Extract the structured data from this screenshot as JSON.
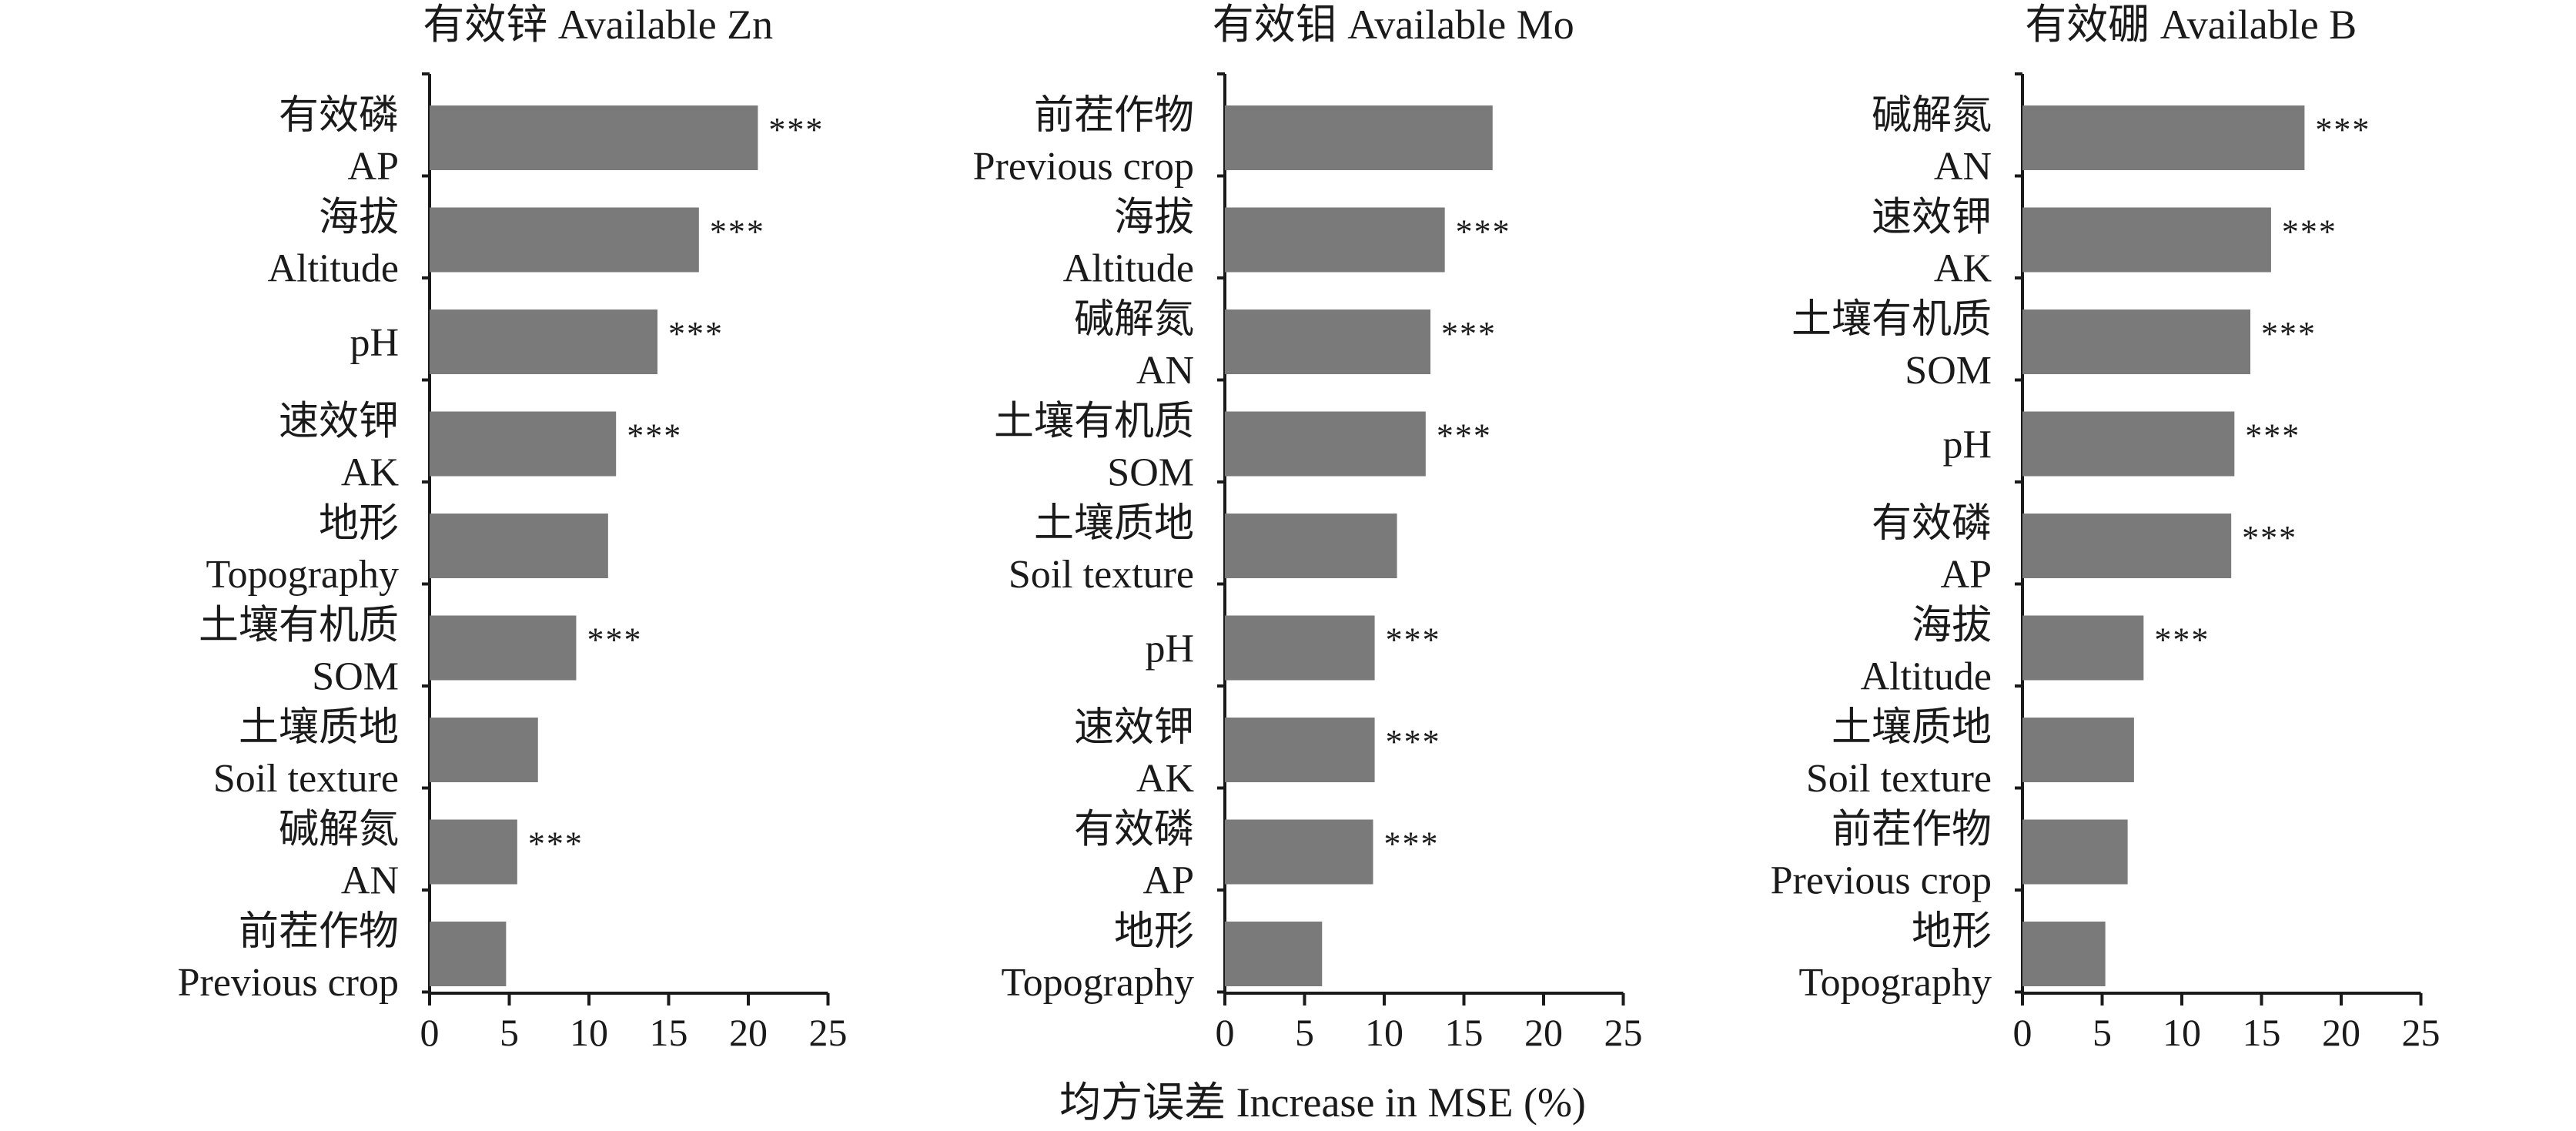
{
  "x_axis_title": "均方误差 Increase in MSE (%)",
  "colors": {
    "bar": "#7a7a7a",
    "axis": "#1a1a1a",
    "text": "#1a1a1a"
  },
  "chart_data": [
    {
      "type": "bar",
      "orientation": "horizontal",
      "title": "有效锌 Available Zn",
      "xlim": [
        0,
        25
      ],
      "xticks": [
        0,
        5,
        10,
        15,
        20,
        25
      ],
      "categories": [
        {
          "zh": "有效磷",
          "en": "AP",
          "value": 20.6,
          "sig": "***"
        },
        {
          "zh": "海拔",
          "en": "Altitude",
          "value": 16.9,
          "sig": "***"
        },
        {
          "zh": "",
          "en": "pH",
          "value": 14.3,
          "sig": "***"
        },
        {
          "zh": "速效钾",
          "en": "AK",
          "value": 11.7,
          "sig": "***"
        },
        {
          "zh": "地形",
          "en": "Topography",
          "value": 11.2,
          "sig": ""
        },
        {
          "zh": "土壤有机质",
          "en": "SOM",
          "value": 9.2,
          "sig": "***"
        },
        {
          "zh": "土壤质地",
          "en": "Soil texture",
          "value": 6.8,
          "sig": ""
        },
        {
          "zh": "碱解氮",
          "en": "AN",
          "value": 5.5,
          "sig": "***"
        },
        {
          "zh": "前茬作物",
          "en": "Previous crop",
          "value": 4.8,
          "sig": ""
        }
      ]
    },
    {
      "type": "bar",
      "orientation": "horizontal",
      "title": "有效钼 Available Mo",
      "xlim": [
        0,
        25
      ],
      "xticks": [
        0,
        5,
        10,
        15,
        20,
        25
      ],
      "categories": [
        {
          "zh": "前茬作物",
          "en": "Previous crop",
          "value": 16.8,
          "sig": ""
        },
        {
          "zh": "海拔",
          "en": "Altitude",
          "value": 13.8,
          "sig": "***"
        },
        {
          "zh": "碱解氮",
          "en": "AN",
          "value": 12.9,
          "sig": "***"
        },
        {
          "zh": "土壤有机质",
          "en": "SOM",
          "value": 12.6,
          "sig": "***"
        },
        {
          "zh": "土壤质地",
          "en": "Soil texture",
          "value": 10.8,
          "sig": ""
        },
        {
          "zh": "",
          "en": "pH",
          "value": 9.4,
          "sig": "***"
        },
        {
          "zh": "速效钾",
          "en": "AK",
          "value": 9.4,
          "sig": "***"
        },
        {
          "zh": "有效磷",
          "en": "AP",
          "value": 9.3,
          "sig": "***"
        },
        {
          "zh": "地形",
          "en": "Topography",
          "value": 6.1,
          "sig": ""
        }
      ]
    },
    {
      "type": "bar",
      "orientation": "horizontal",
      "title": "有效硼 Available B",
      "xlim": [
        0,
        25
      ],
      "xticks": [
        0,
        5,
        10,
        15,
        20,
        25
      ],
      "categories": [
        {
          "zh": "碱解氮",
          "en": "AN",
          "value": 17.7,
          "sig": "***"
        },
        {
          "zh": "速效钾",
          "en": "AK",
          "value": 15.6,
          "sig": "***"
        },
        {
          "zh": "土壤有机质",
          "en": "SOM",
          "value": 14.3,
          "sig": "***"
        },
        {
          "zh": "",
          "en": "pH",
          "value": 13.3,
          "sig": "***"
        },
        {
          "zh": "有效磷",
          "en": "AP",
          "value": 13.1,
          "sig": "***"
        },
        {
          "zh": "海拔",
          "en": "Altitude",
          "value": 7.6,
          "sig": "***"
        },
        {
          "zh": "土壤质地",
          "en": "Soil texture",
          "value": 7.0,
          "sig": ""
        },
        {
          "zh": "前茬作物",
          "en": "Previous crop",
          "value": 6.6,
          "sig": ""
        },
        {
          "zh": "地形",
          "en": "Topography",
          "value": 5.2,
          "sig": ""
        }
      ]
    }
  ]
}
